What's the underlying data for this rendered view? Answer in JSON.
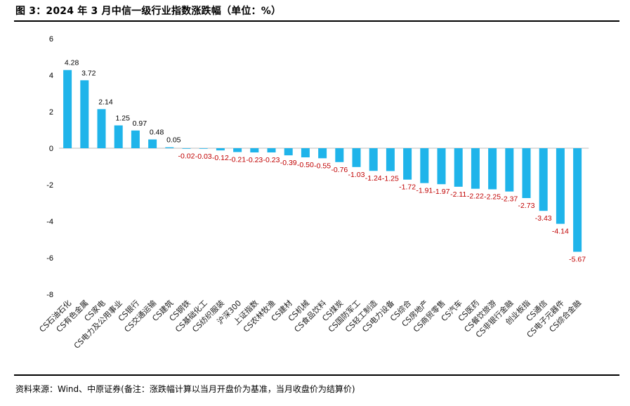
{
  "figure": {
    "title": "图 3：2024 年 3 月中信一级行业指数涨跌幅（单位：%）",
    "source": "资料来源：Wind、中原证券(备注：涨跌幅计算以当月开盘价为基准，当月收盘价为结算价)"
  },
  "colors": {
    "bar": "#1fb4ea",
    "positive_label": "#000000",
    "negative_label": "#c00000"
  },
  "chart_data": {
    "type": "bar",
    "categories": [
      "CS石油石化",
      "CS有色金属",
      "CS家电",
      "CS电力及公用事业",
      "CS银行",
      "CS交通运输",
      "CS建筑",
      "CS钢铁",
      "CS基础化工",
      "CS纺织服装",
      "沪深300",
      "上证指数",
      "CS农林牧渔",
      "CS建材",
      "CS机械",
      "CS食品饮料",
      "CS煤炭",
      "CS国防军工",
      "CS轻工制造",
      "CS电力设备",
      "CS综合",
      "CS房地产",
      "CS商贸零售",
      "CS汽车",
      "CS医药",
      "CS餐饮旅游",
      "CS非银行金融",
      "创业板指",
      "CS通信",
      "CS电子元器件",
      "CS综合金融"
    ],
    "values": [
      4.28,
      3.72,
      2.14,
      1.25,
      0.97,
      0.48,
      0.05,
      -0.02,
      -0.03,
      -0.12,
      -0.21,
      -0.23,
      -0.23,
      -0.39,
      -0.5,
      -0.55,
      -0.76,
      -1.03,
      -1.24,
      -1.25,
      -1.72,
      -1.91,
      -1.97,
      -2.11,
      -2.22,
      -2.25,
      -2.37,
      -2.73,
      -3.43,
      -4.14,
      -5.67
    ],
    "data_labels": [
      "4.28",
      "3.72",
      "2.14",
      "1.25",
      "0.97",
      "0.48",
      "0.05",
      "-0.02",
      "-0.03",
      "-0.12",
      "-0.21",
      "-0.23",
      "-0.23",
      "-0.39",
      "-0.50",
      "-0.55",
      "-0.76",
      "-1.03",
      "-1.24",
      "-1.25",
      "-1.72",
      "-1.91",
      "-1.97",
      "-2.11",
      "-2.22",
      "-2.25",
      "-2.37",
      "-2.73",
      "-3.43",
      "-4.14",
      "-5.67"
    ],
    "y_ticks": [
      6,
      4,
      2,
      0,
      -2,
      -4,
      -6,
      -8
    ],
    "ylim": [
      -8,
      6
    ],
    "grid": false,
    "legend": "none"
  }
}
